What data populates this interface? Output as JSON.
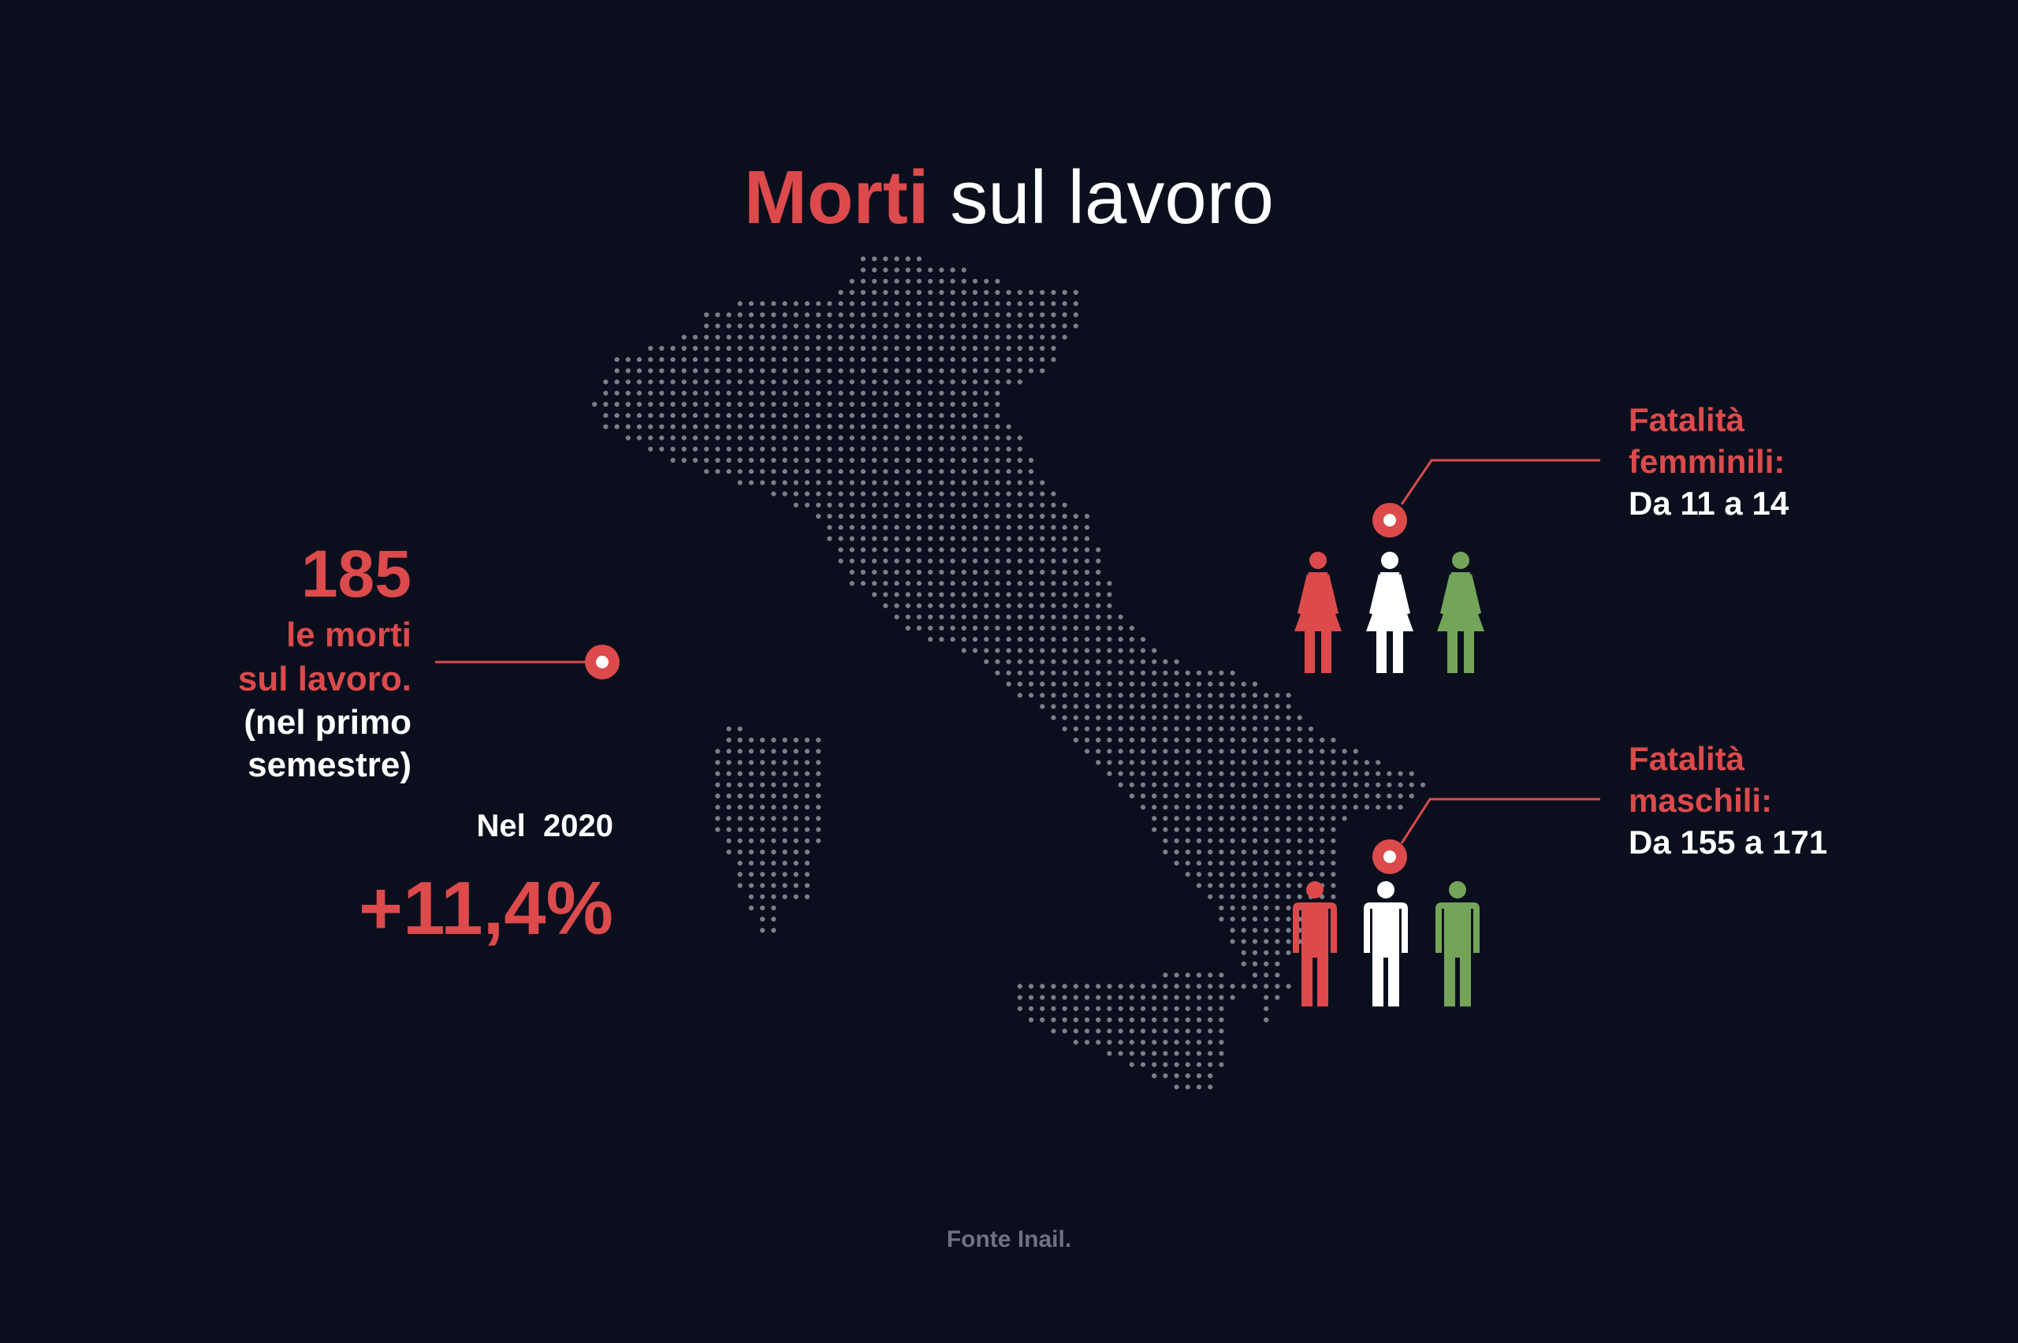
{
  "title": {
    "accent": "Morti",
    "rest": "sul lavoro"
  },
  "left": {
    "count": "185",
    "line1": "le morti",
    "line2": "sul lavoro.",
    "line3": "(nel primo",
    "line4": "semestre)",
    "year_label": "Nel  2020",
    "change": "+11,4%"
  },
  "female": {
    "label1": "Fatalità",
    "label2": "femminili:",
    "value": "Da 11 a 14"
  },
  "male": {
    "label1": "Fatalità",
    "label2": "maschili:",
    "value": "Da 155 a 171"
  },
  "source": "Fonte Inail.",
  "colors": {
    "accent": "#dc4a4c",
    "white": "#ffffff",
    "green": "#73a45a",
    "background": "#0b0f1d",
    "dots": "#7c7e8a"
  },
  "icons": [
    "italy-dot-map",
    "location-pin-icon",
    "female-figure-icon",
    "male-figure-icon"
  ]
}
